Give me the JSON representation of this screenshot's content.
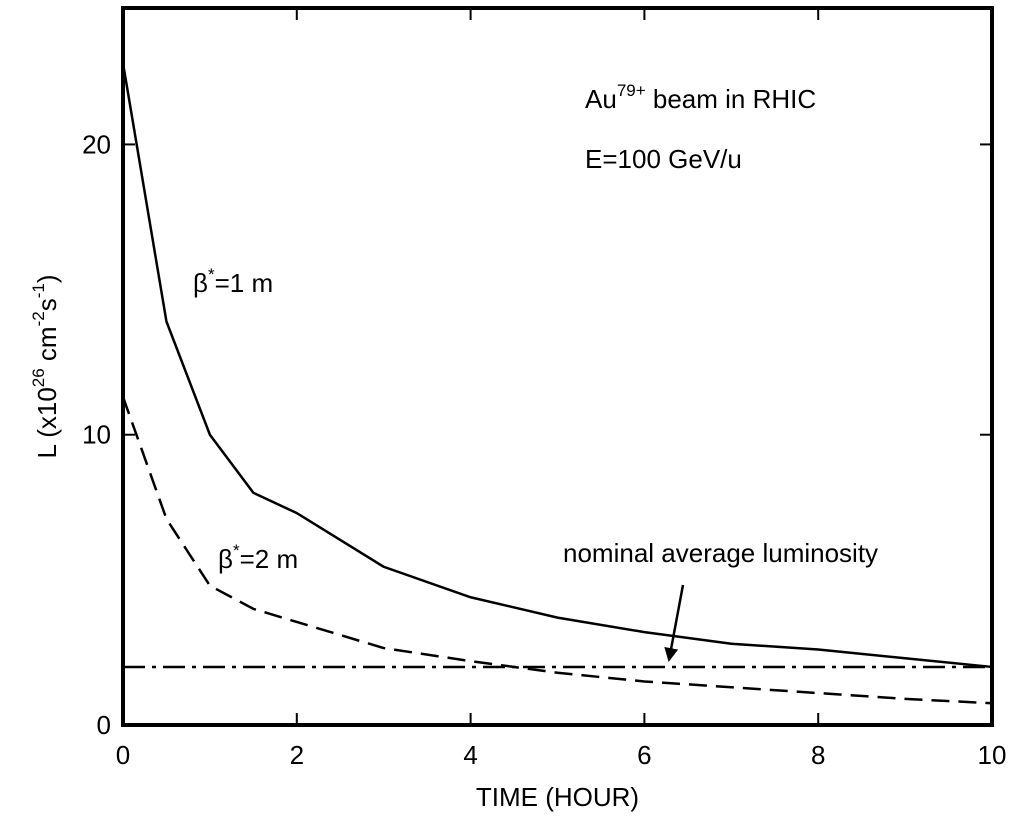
{
  "chart_data": {
    "type": "line",
    "x_label": "TIME (HOUR)",
    "y_label": [
      {
        "text": "L (x10"
      },
      {
        "text": "26",
        "shift": "sup"
      },
      {
        "text": " cm"
      },
      {
        "text": "-2",
        "shift": "sup"
      },
      {
        "text": "s"
      },
      {
        "text": "-1",
        "shift": "sup"
      },
      {
        "text": ")"
      }
    ],
    "xlim": [
      0,
      10
    ],
    "xticks": [
      0,
      2,
      4,
      6,
      8,
      10
    ],
    "ylim": [
      0,
      24.7
    ],
    "yticks": [
      0,
      10,
      20
    ],
    "series": [
      {
        "color": "#000000",
        "dash": "solid",
        "x": [
          0,
          0.5,
          1,
          1.5,
          2,
          3,
          4,
          5,
          6,
          7,
          8,
          9,
          10
        ],
        "values": [
          22.8,
          13.9,
          10.0,
          8.0,
          7.3,
          5.45,
          4.4,
          3.7,
          3.2,
          2.8,
          2.6,
          2.3,
          2.0
        ]
      },
      {
        "color": "#000000",
        "dash": "dashed",
        "x": [
          0,
          0.5,
          1,
          1.5,
          2,
          3,
          4,
          5,
          6,
          7,
          8,
          9,
          10
        ],
        "values": [
          11.3,
          7.1,
          4.8,
          4.0,
          3.55,
          2.65,
          2.2,
          1.8,
          1.5,
          1.3,
          1.1,
          0.9,
          0.75
        ]
      },
      {
        "color": "#000000",
        "dash": "dashdot",
        "x": [
          0,
          10
        ],
        "values": [
          2.0,
          2.0
        ]
      }
    ],
    "annotations": [
      [
        {
          "text": "Au"
        },
        {
          "text": "79+",
          "shift": "sup"
        },
        {
          "text": " beam in RHIC"
        }
      ],
      [
        {
          "text": "E=100 GeV/u"
        }
      ],
      [
        {
          "text": "β"
        },
        {
          "text": "*",
          "shift": "sup"
        },
        {
          "text": "=1 m"
        }
      ],
      [
        {
          "text": "β"
        },
        {
          "text": "*",
          "shift": "sup"
        },
        {
          "text": "=2 m"
        }
      ],
      [
        {
          "text": "nominal average luminosity"
        }
      ]
    ]
  }
}
